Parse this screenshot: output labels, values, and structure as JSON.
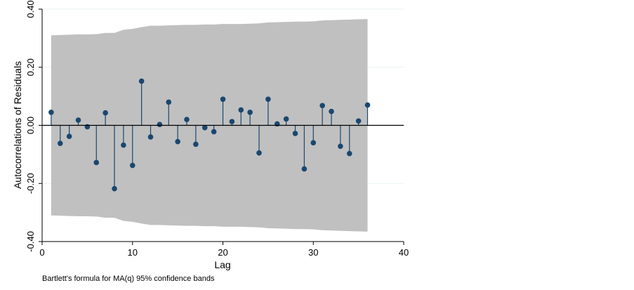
{
  "chart_data": {
    "type": "stem",
    "title": "",
    "ylabel": "Autocorrelations of Residuals",
    "xlabel": "Lag",
    "note": "Bartlett's formula for MA(q) 95% confidence bands",
    "xlim": [
      0,
      40
    ],
    "ylim": [
      -0.4,
      0.4
    ],
    "xticks": [
      0,
      10,
      20,
      30,
      40
    ],
    "xtick_labels": [
      "0",
      "10",
      "20",
      "30",
      "40"
    ],
    "yticks": [
      -0.4,
      -0.2,
      0.0,
      0.2,
      0.4
    ],
    "ytick_labels": [
      "-0.40",
      "-0.20",
      "0.00",
      "0.20",
      "0.40"
    ],
    "grid": true,
    "colors": {
      "band": "#c0c0c0",
      "stem": "#1a476f",
      "marker": "#1a476f",
      "grid": "#eaf2f3",
      "axis": "#000000"
    },
    "lags": [
      1,
      2,
      3,
      4,
      5,
      6,
      7,
      8,
      9,
      10,
      11,
      12,
      13,
      14,
      15,
      16,
      17,
      18,
      19,
      20,
      21,
      22,
      23,
      24,
      25,
      26,
      27,
      28,
      29,
      30,
      31,
      32,
      33,
      34,
      35,
      36
    ],
    "autocorrelations": [
      0.045,
      -0.062,
      -0.038,
      0.018,
      -0.005,
      -0.128,
      0.043,
      -0.218,
      -0.068,
      -0.138,
      0.152,
      -0.04,
      0.003,
      0.08,
      -0.056,
      0.02,
      -0.065,
      -0.008,
      -0.022,
      0.09,
      0.013,
      0.053,
      0.045,
      -0.095,
      0.09,
      0.005,
      0.022,
      -0.028,
      -0.15,
      -0.06,
      0.068,
      0.048,
      -0.072,
      -0.097,
      0.015,
      0.07
    ],
    "confidence_band_upper": [
      0.31,
      0.311,
      0.312,
      0.313,
      0.313,
      0.314,
      0.318,
      0.318,
      0.329,
      0.332,
      0.338,
      0.343,
      0.343,
      0.344,
      0.345,
      0.346,
      0.346,
      0.347,
      0.347,
      0.349,
      0.349,
      0.349,
      0.35,
      0.351,
      0.354,
      0.355,
      0.356,
      0.357,
      0.357,
      0.358,
      0.361,
      0.362,
      0.363,
      0.364,
      0.365,
      0.366
    ]
  }
}
